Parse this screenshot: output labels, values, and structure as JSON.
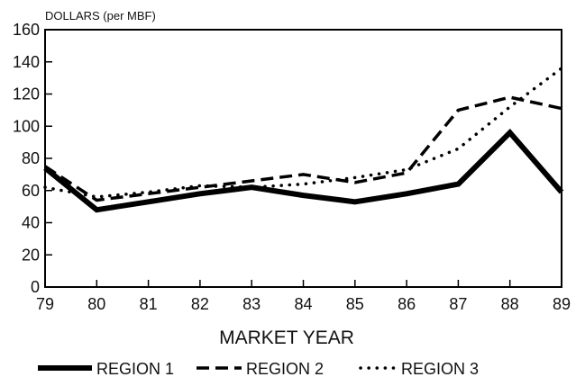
{
  "chart_data": {
    "type": "line",
    "title": "",
    "ylabel": "DOLLARS (per MBF)",
    "xlabel": "MARKET YEAR",
    "x": [
      "79",
      "80",
      "81",
      "82",
      "83",
      "84",
      "85",
      "86",
      "87",
      "88",
      "89"
    ],
    "yticks": [
      "0",
      "20",
      "40",
      "60",
      "80",
      "100",
      "120",
      "140",
      "160"
    ],
    "ylim": [
      0,
      160
    ],
    "grid": false,
    "legend_position": "bottom",
    "series": [
      {
        "name": "REGION 1",
        "style": "solid",
        "color": "#000000",
        "values": [
          74,
          48,
          53,
          58,
          62,
          57,
          53,
          58,
          64,
          96,
          59
        ]
      },
      {
        "name": "REGION 2",
        "style": "dashed",
        "color": "#000000",
        "values": [
          75,
          54,
          58,
          62,
          66,
          70,
          65,
          71,
          110,
          118,
          111
        ]
      },
      {
        "name": "REGION 3",
        "style": "dotted",
        "color": "#000000",
        "values": [
          62,
          56,
          59,
          63,
          62,
          64,
          68,
          73,
          86,
          112,
          136
        ]
      }
    ]
  }
}
